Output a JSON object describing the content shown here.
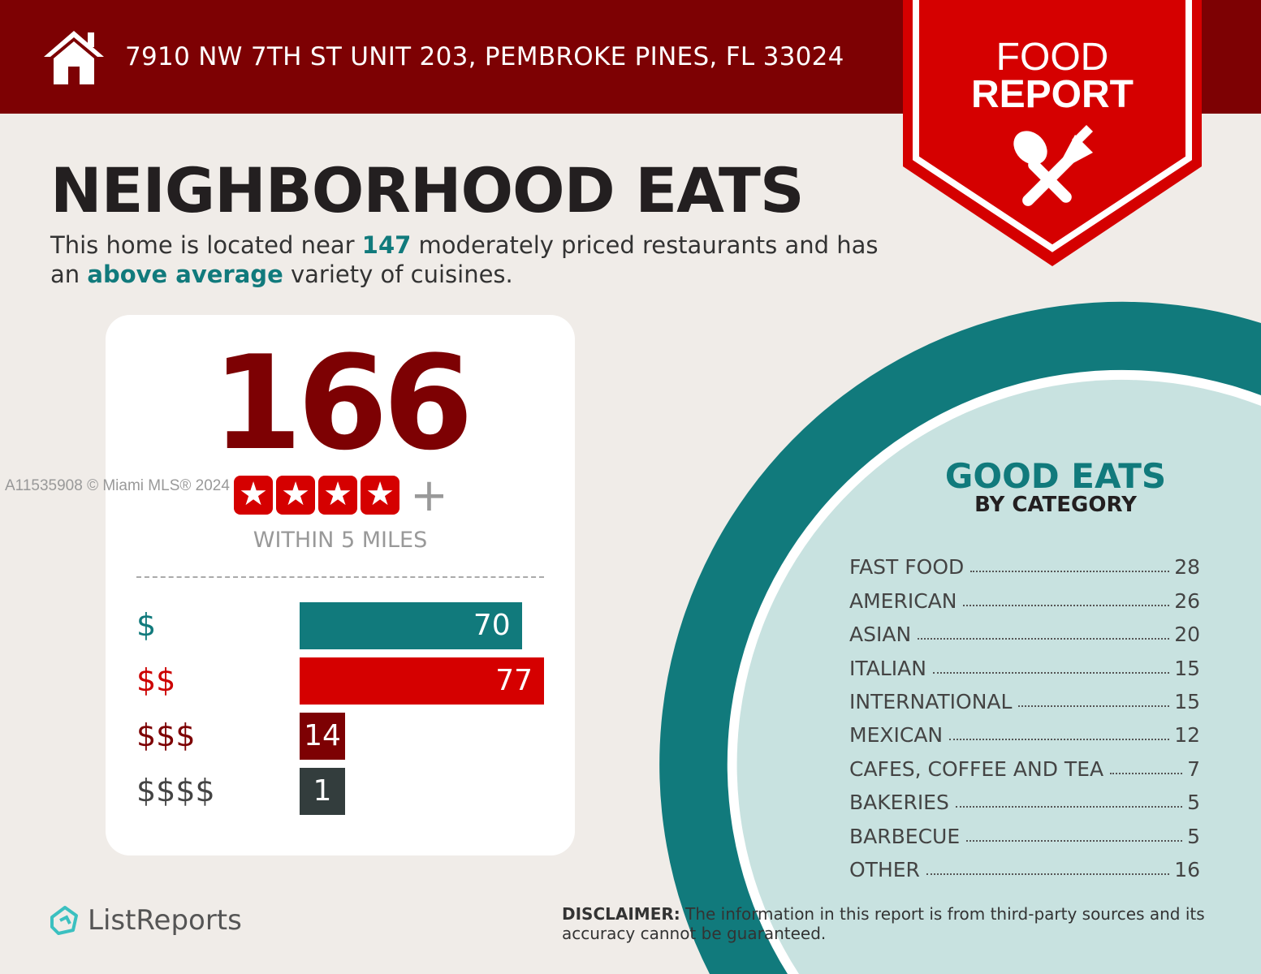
{
  "header": {
    "address": "7910 NW 7TH ST UNIT 203, PEMBROKE PINES, FL 33024",
    "icon": "home-icon"
  },
  "badge": {
    "line1": "FOOD",
    "line2": "REPORT",
    "icon": "spoon-fork-icon"
  },
  "title": "NEIGHBORHOOD EATS",
  "subtitle": {
    "pre": "This home is located near ",
    "count": "147",
    "mid": " moderately priced restaurants and has an ",
    "variety": "above average",
    "post": " variety of cuisines."
  },
  "summary": {
    "total": "166",
    "rating_stars": 4,
    "rating_suffix": "+",
    "within": "WITHIN 5 MILES"
  },
  "price_tiers": [
    {
      "label": "$",
      "value": 70,
      "color": "#117a7c"
    },
    {
      "label": "$$",
      "value": 77,
      "color": "#d50000"
    },
    {
      "label": "$$$",
      "value": 14,
      "color": "#7d0103"
    },
    {
      "label": "$$$$",
      "value": 1,
      "color": "#333d3d"
    }
  ],
  "categories_panel": {
    "title": "GOOD EATS",
    "subtitle": "BY CATEGORY",
    "items": [
      {
        "name": "FAST FOOD",
        "count": "28"
      },
      {
        "name": "AMERICAN",
        "count": "26"
      },
      {
        "name": "ASIAN",
        "count": "20"
      },
      {
        "name": "ITALIAN",
        "count": "15"
      },
      {
        "name": "INTERNATIONAL",
        "count": "15"
      },
      {
        "name": "MEXICAN",
        "count": "12"
      },
      {
        "name": "CAFES, COFFEE AND TEA",
        "count": "7"
      },
      {
        "name": "BAKERIES",
        "count": "5"
      },
      {
        "name": "BARBECUE",
        "count": "5"
      },
      {
        "name": "OTHER",
        "count": "16"
      }
    ]
  },
  "footer": {
    "brand": "ListReports",
    "disclaimer_label": "DISCLAIMER:",
    "disclaimer": " The information in this report is from third-party sources and its accuracy cannot be guaranteed."
  },
  "watermark": "A11535908 © Miami MLS® 2024",
  "colors": {
    "header": "#7d0103",
    "accent_red": "#d50000",
    "teal": "#117a7c",
    "light_teal": "#c8e2e0"
  }
}
